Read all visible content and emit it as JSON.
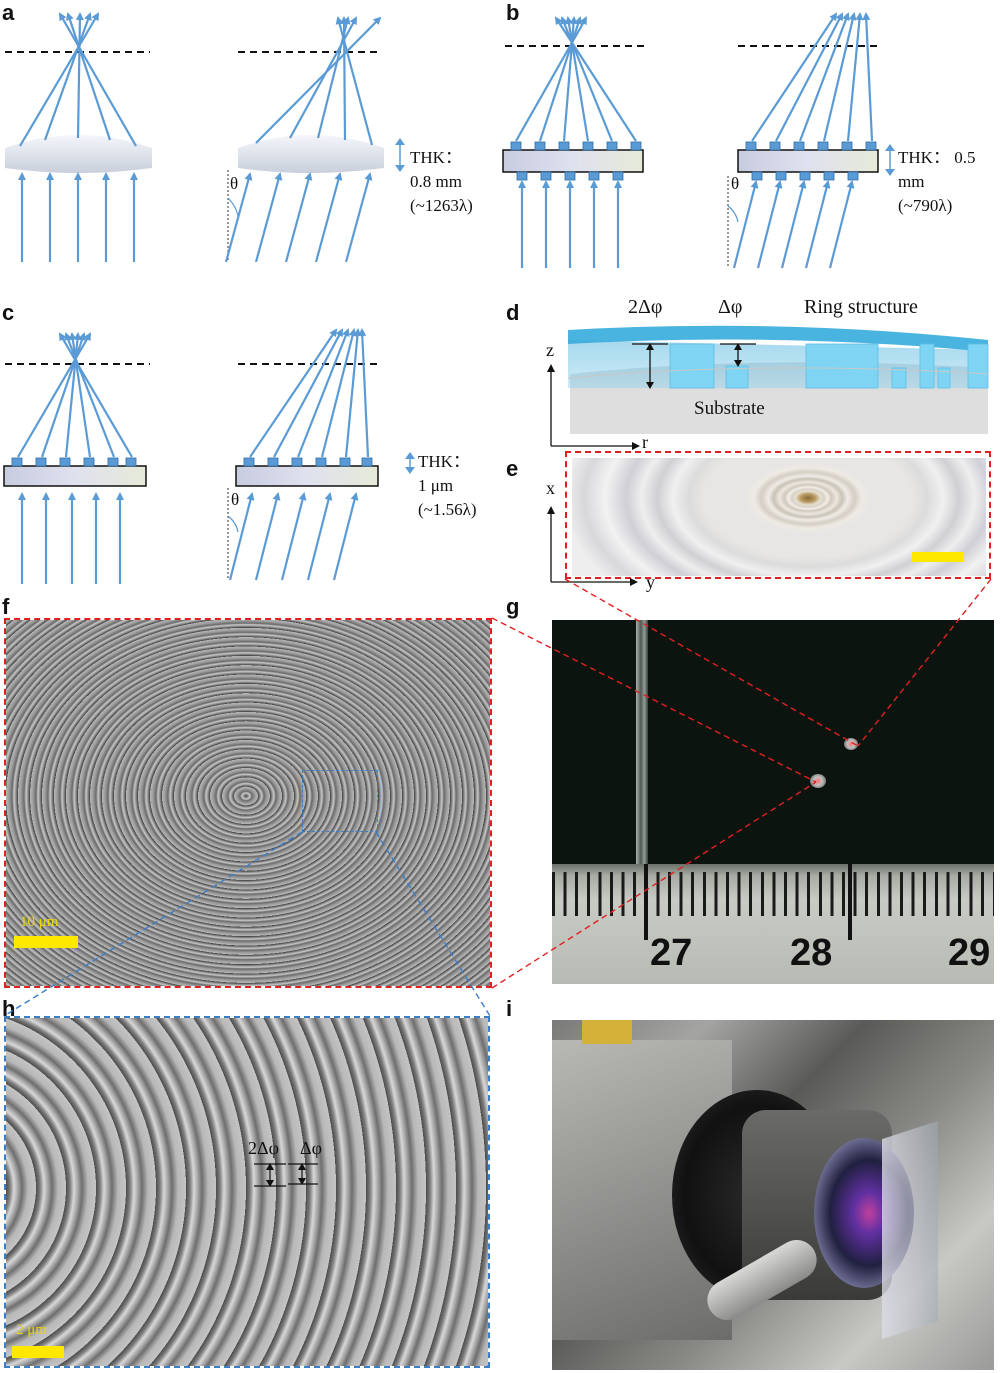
{
  "panels": {
    "a": "a",
    "b": "b",
    "c": "c",
    "d": "d",
    "e": "e",
    "f": "f",
    "g": "g",
    "h": "h",
    "i": "i"
  },
  "a": {
    "thk_line1": "THK：",
    "thk_line2": "0.8 mm",
    "thk_line3": "(~1263λ)",
    "theta": "θ"
  },
  "b": {
    "thk_line1": "THK： 0.5",
    "thk_line2": "mm",
    "thk_line3": "(~790λ)",
    "theta": "θ"
  },
  "c": {
    "thk_line1": "THK：",
    "thk_line2": "1 μm",
    "thk_line3": "(~1.56λ)",
    "theta": "θ"
  },
  "d": {
    "label_2dphi": "2Δφ",
    "label_dphi": "Δφ",
    "label_ring": "Ring structure",
    "label_substrate": "Substrate",
    "axis_z": "z",
    "axis_r": "r"
  },
  "e": {
    "axis_x": "x",
    "axis_y": "y"
  },
  "f": {
    "scale_label": "10 μm"
  },
  "g": {
    "ruler_27": "27",
    "ruler_28": "28",
    "ruler_29": "29"
  },
  "h": {
    "label_2dphi": "2Δφ",
    "label_dphi": "Δφ",
    "scale_label": "2 μm"
  },
  "colors": {
    "ray": "#5b9bd5",
    "ring": "#7ec8e8",
    "red_dash": "#e02020",
    "blue_dash": "#3a7ec8",
    "scale": "#ffe800"
  }
}
